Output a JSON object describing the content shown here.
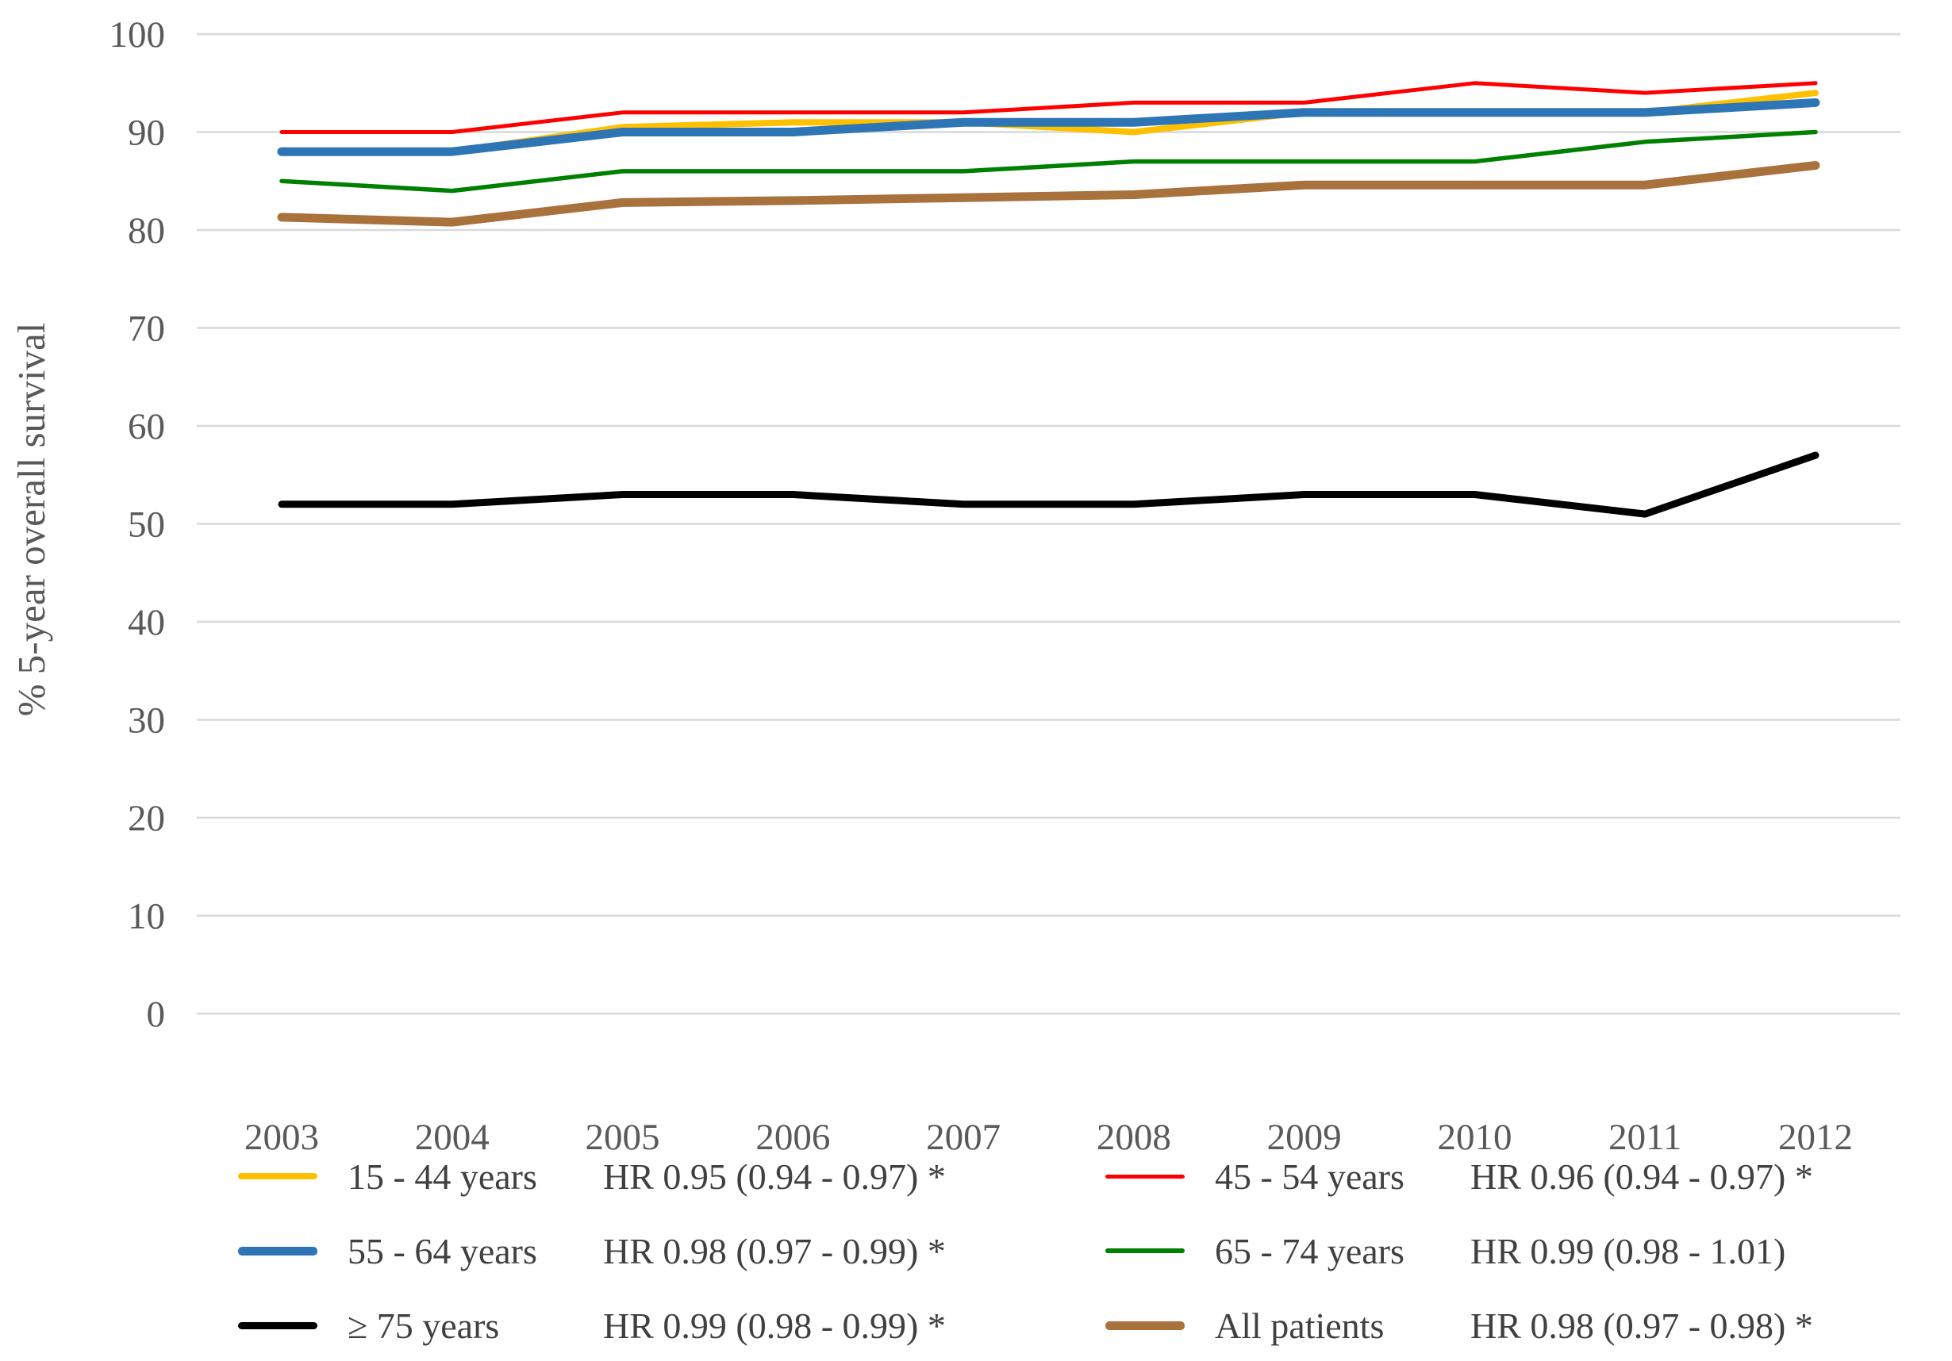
{
  "chart_data": {
    "type": "line",
    "title": "",
    "xlabel": "",
    "ylabel": "% 5-year overall survival",
    "ylim": [
      0,
      100
    ],
    "y_ticks": [
      0,
      10,
      20,
      30,
      40,
      50,
      60,
      70,
      80,
      90,
      100
    ],
    "categories": [
      "2003",
      "2004",
      "2005",
      "2006",
      "2007",
      "2008",
      "2009",
      "2010",
      "2011",
      "2012"
    ],
    "grid": "horizontal",
    "grid_color": "#D9D9D9",
    "tick_color": "#595959",
    "legend_position": "bottom",
    "series": [
      {
        "name": "15 - 44 years",
        "hr": "HR 0.95 (0.94 - 0.97) *",
        "color": "#FFC000",
        "stroke_width": 8,
        "values": [
          88,
          88,
          90.5,
          91,
          91,
          90,
          92,
          92,
          92,
          94
        ]
      },
      {
        "name": "45 - 54 years",
        "hr": "HR 0.96 (0.94 - 0.97) *",
        "color": "#FF0000",
        "stroke_width": 5,
        "values": [
          90,
          90,
          92,
          92,
          92,
          93,
          93,
          95,
          94,
          95
        ]
      },
      {
        "name": "55 - 64 years",
        "hr": "HR 0.98 (0.97 - 0.99) *",
        "color": "#2E75B6",
        "stroke_width": 11,
        "values": [
          88,
          88,
          90,
          90,
          91,
          91,
          92,
          92,
          92,
          93
        ]
      },
      {
        "name": "65 - 74 years",
        "hr": "HR 0.99 (0.98 - 1.01)",
        "color": "#008000",
        "stroke_width": 5.5,
        "values": [
          85,
          84,
          86,
          86,
          86,
          87,
          87,
          87,
          89,
          90
        ]
      },
      {
        "name": "≥ 75 years",
        "hr": "HR 0.99 (0.98 - 0.99) *",
        "color": "#000000",
        "stroke_width": 9,
        "values": [
          52,
          52,
          53,
          53,
          52,
          52,
          53,
          53,
          51,
          57
        ]
      },
      {
        "name": "All patients",
        "hr": "HR 0.98 (0.97 - 0.98) *",
        "color": "#A9713B",
        "stroke_width": 11,
        "values": [
          81.3,
          80.8,
          82.8,
          83,
          83.3,
          83.6,
          84.6,
          84.6,
          84.6,
          86.6
        ]
      }
    ]
  }
}
